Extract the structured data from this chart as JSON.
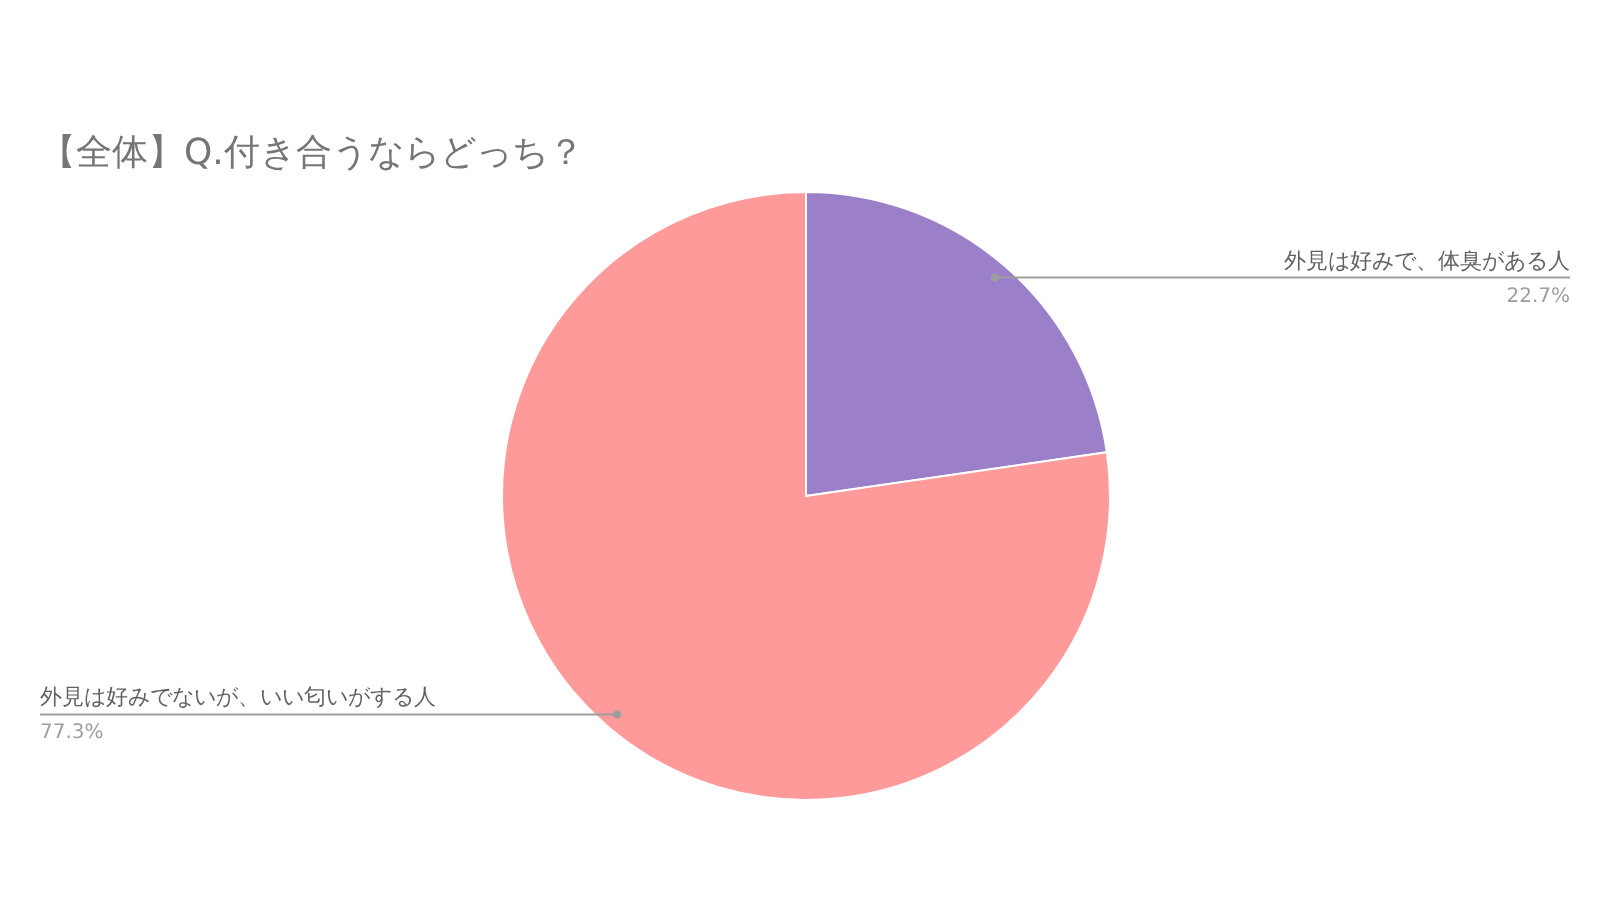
{
  "chart_data": {
    "type": "pie",
    "title": "【全体】Q.付き合うならどっち？",
    "categories": [
      "外見は好みで、体臭がある人",
      "外見は好みでないが、いい匂いがする人"
    ],
    "values": [
      22.7,
      77.3
    ],
    "value_labels": [
      "22.7%",
      "77.3%"
    ],
    "colors": [
      "#9b7fc9",
      "#ff9a9a"
    ]
  }
}
